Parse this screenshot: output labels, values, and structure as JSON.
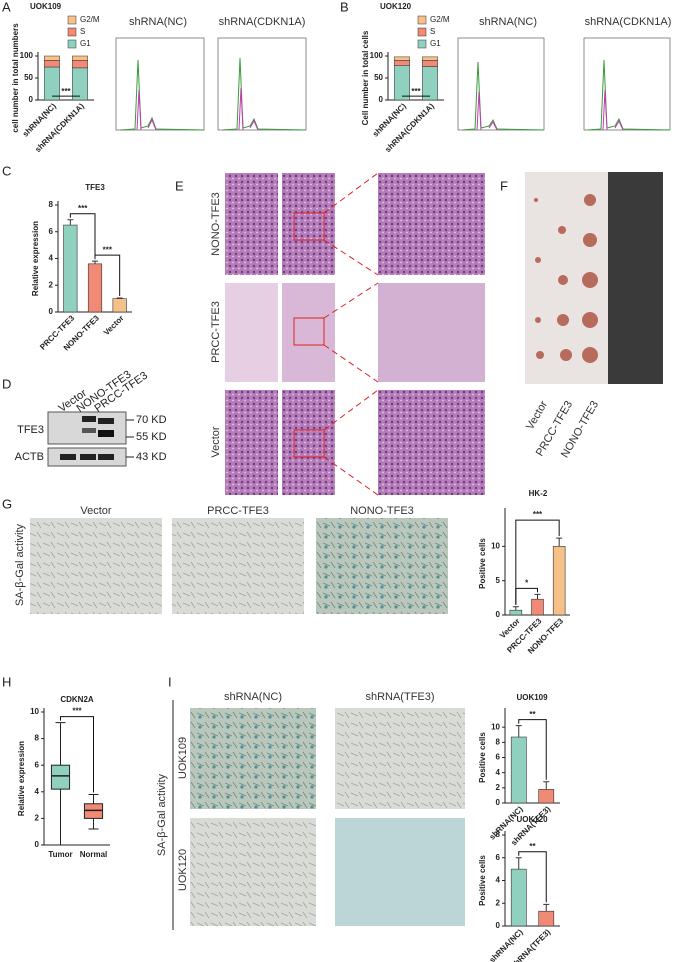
{
  "figure": {
    "panels": [
      "A",
      "B",
      "C",
      "D",
      "E",
      "F",
      "G",
      "H",
      "I"
    ],
    "flow_titles": [
      "shRNA(NC)",
      "shRNA(CDKN1A)",
      "shRNA(NC)",
      "shRNA(CDKN1A)"
    ],
    "blot": {
      "lanes": [
        "Vector",
        "NONO-TFE3",
        "PRCC-TFE3"
      ],
      "rows": [
        "TFE3",
        "ACTB"
      ],
      "sizes": [
        "70 KD",
        "55 KD",
        "43 KD"
      ]
    },
    "histology_rows": [
      "NONO-TFE3",
      "PRCC-TFE3",
      "Vector"
    ],
    "tumor_labels": [
      "Vector",
      "PRCC-TFE3",
      "NONO-TFE3"
    ],
    "sa_gal": {
      "side": "SA-β-Gal activity",
      "columns": [
        "Vector",
        "PRCC-TFE3",
        "NONO-TFE3"
      ]
    },
    "shrna": {
      "side": "SA-β-Gal activity",
      "columns": [
        "shRNA(NC)",
        "shRNA(TFE3)"
      ],
      "rows": [
        "UOK109",
        "UOK120"
      ]
    }
  },
  "chart_data": [
    {
      "type": "stacked_bar",
      "title": "UOK109",
      "y_label": "cell number in total numbers",
      "categories": [
        "shRNA(NC)",
        "shRNA(CDKN1A)"
      ],
      "series": [
        {
          "name": "G1",
          "color": "#8fd0bf",
          "values": [
            75,
            73
          ]
        },
        {
          "name": "S",
          "color": "#f08a75",
          "values": [
            15,
            17
          ]
        },
        {
          "name": "G2/M",
          "color": "#f6c089",
          "values": [
            10,
            10
          ]
        }
      ],
      "ylim": [
        0,
        100
      ],
      "yticks": [
        0,
        50,
        100
      ],
      "annotations": [
        "***"
      ]
    },
    {
      "type": "stacked_bar",
      "title": "UOK120",
      "y_label": "Cell number in total cells",
      "categories": [
        "shRNA(NC)",
        "shRNA(CDKN1A)"
      ],
      "series": [
        {
          "name": "G1",
          "color": "#8fd0bf",
          "values": [
            78,
            76
          ]
        },
        {
          "name": "S",
          "color": "#f08a75",
          "values": [
            12,
            14
          ]
        },
        {
          "name": "G2/M",
          "color": "#f6c089",
          "values": [
            8,
            8
          ]
        }
      ],
      "ylim": [
        0,
        100
      ],
      "yticks": [
        0,
        50,
        100
      ],
      "annotations": [
        "***"
      ]
    },
    {
      "type": "bar",
      "title": "TFE3",
      "y_label": "Relative expression",
      "categories": [
        "PRCC-TFE3",
        "NONO-TFE3",
        "Vector"
      ],
      "colors": [
        "#8fd0bf",
        "#f08a75",
        "#f6c089"
      ],
      "values": [
        6.5,
        3.6,
        1.0
      ],
      "errors": [
        0.4,
        0.2,
        0.05
      ],
      "ylim": [
        0,
        8
      ],
      "yticks": [
        0,
        2,
        4,
        6,
        8
      ],
      "annotations": [
        "***",
        "***"
      ]
    },
    {
      "type": "bar",
      "title": "HK-2",
      "y_label": "Positive cells",
      "categories": [
        "Vector",
        "PRCC-TFE3",
        "NONO-TFE3"
      ],
      "colors": [
        "#8fd0bf",
        "#f08a75",
        "#f6c089"
      ],
      "values": [
        0.7,
        2.3,
        10
      ],
      "errors": [
        0.5,
        0.7,
        1.2
      ],
      "ylim": [
        0,
        15
      ],
      "yticks": [
        0,
        5,
        10
      ],
      "annotations": [
        "*",
        "***"
      ]
    },
    {
      "type": "box",
      "title": "CDKN2A",
      "y_label": "Relative expression",
      "categories": [
        "Tumor",
        "Normal"
      ],
      "colors": [
        "#8fd0bf",
        "#f08a75"
      ],
      "stats": [
        {
          "min": 0,
          "q1": 4.2,
          "median": 5.2,
          "q3": 6.0,
          "max": 9.2
        },
        {
          "min": 1.2,
          "q1": 2.0,
          "median": 2.6,
          "q3": 3.1,
          "max": 3.8
        }
      ],
      "ylim": [
        0,
        10
      ],
      "yticks": [
        0,
        2,
        4,
        6,
        8,
        10
      ],
      "annotations": [
        "***"
      ]
    },
    {
      "type": "bar",
      "title": "UOK109",
      "y_label": "Positive cells",
      "categories": [
        "shRNA(NC)",
        "shRNA(TFE3)"
      ],
      "colors": [
        "#8fd0bf",
        "#f08a75"
      ],
      "values": [
        8.7,
        1.8
      ],
      "errors": [
        1.5,
        1.0
      ],
      "ylim": [
        0,
        12
      ],
      "yticks": [
        0,
        2,
        4,
        6,
        8,
        10
      ],
      "annotations": [
        "**"
      ]
    },
    {
      "type": "bar",
      "title": "UOK120",
      "y_label": "Positive cells",
      "categories": [
        "shRNA(NC)",
        "shRNA(TFE3)"
      ],
      "colors": [
        "#8fd0bf",
        "#f08a75"
      ],
      "values": [
        5.0,
        1.3
      ],
      "errors": [
        1.0,
        0.6
      ],
      "ylim": [
        0,
        8
      ],
      "yticks": [
        0,
        2,
        4,
        6,
        8
      ],
      "annotations": [
        "**"
      ]
    }
  ]
}
